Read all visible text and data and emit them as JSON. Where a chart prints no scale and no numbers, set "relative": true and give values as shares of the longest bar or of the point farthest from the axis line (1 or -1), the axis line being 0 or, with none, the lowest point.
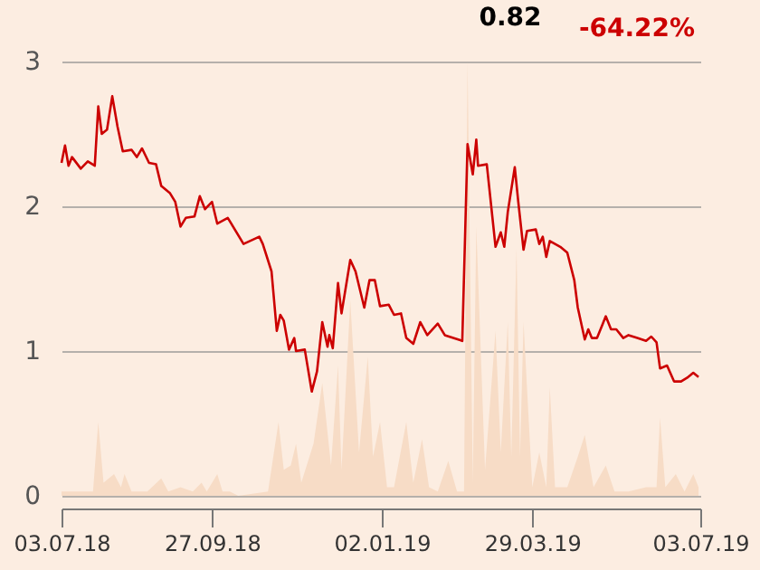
{
  "chart_data": [
    {
      "type": "line",
      "annotations": [
        "0.82",
        "-64.22%"
      ],
      "x": [
        "2018-07-03",
        "2018-07-05",
        "2018-07-07",
        "2018-07-09",
        "2018-07-14",
        "2018-07-18",
        "2018-07-22",
        "2018-07-24",
        "2018-07-26",
        "2018-07-29",
        "2018-08-01",
        "2018-08-04",
        "2018-08-07",
        "2018-08-12",
        "2018-08-15",
        "2018-08-18",
        "2018-08-22",
        "2018-08-26",
        "2018-08-29",
        "2018-09-03",
        "2018-09-06",
        "2018-09-09",
        "2018-09-12",
        "2018-09-17",
        "2018-09-20",
        "2018-09-23",
        "2018-09-27",
        "2018-09-30",
        "2018-10-06",
        "2018-10-15",
        "2018-10-24",
        "2018-10-26",
        "2018-10-31",
        "2018-11-03",
        "2018-11-05",
        "2018-11-07",
        "2018-11-10",
        "2018-11-13",
        "2018-11-14",
        "2018-11-19",
        "2018-11-23",
        "2018-11-26",
        "2018-11-29",
        "2018-12-02",
        "2018-12-03",
        "2018-12-05",
        "2018-12-08",
        "2018-12-10",
        "2018-12-15",
        "2018-12-18",
        "2018-12-23",
        "2018-12-26",
        "2018-12-29",
        "2019-01-01",
        "2019-01-06",
        "2019-01-09",
        "2019-01-13",
        "2019-01-16",
        "2019-01-20",
        "2019-01-24",
        "2019-01-28",
        "2019-02-03",
        "2019-02-07",
        "2019-02-17",
        "2019-02-20",
        "2019-02-23",
        "2019-02-25",
        "2019-02-26",
        "2019-03-03",
        "2019-03-08",
        "2019-03-11",
        "2019-03-13",
        "2019-03-15",
        "2019-03-19",
        "2019-03-21",
        "2019-03-24",
        "2019-03-26",
        "2019-03-31",
        "2019-04-02",
        "2019-04-04",
        "2019-04-06",
        "2019-04-08",
        "2019-04-14",
        "2019-04-18",
        "2019-04-22",
        "2019-04-24",
        "2019-04-28",
        "2019-04-30",
        "2019-05-02",
        "2019-05-05",
        "2019-05-08",
        "2019-05-10",
        "2019-05-13",
        "2019-05-16",
        "2019-05-20",
        "2019-05-23",
        "2019-05-28",
        "2019-06-02",
        "2019-06-05",
        "2019-06-08",
        "2019-06-10",
        "2019-06-14",
        "2019-06-18",
        "2019-06-22",
        "2019-06-26",
        "2019-06-29",
        "2019-07-02"
      ],
      "series": [
        {
          "color": "#cc0000",
          "values": [
            2.3,
            2.42,
            2.28,
            2.34,
            2.26,
            2.31,
            2.28,
            2.69,
            2.5,
            2.53,
            2.76,
            2.55,
            2.38,
            2.39,
            2.34,
            2.4,
            2.3,
            2.29,
            2.14,
            2.09,
            2.03,
            1.86,
            1.92,
            1.93,
            2.07,
            1.98,
            2.03,
            1.88,
            1.92,
            1.74,
            1.79,
            1.74,
            1.55,
            1.14,
            1.25,
            1.21,
            1.01,
            1.09,
            1.0,
            1.01,
            0.72,
            0.86,
            1.2,
            1.03,
            1.11,
            1.02,
            1.47,
            1.26,
            1.63,
            1.55,
            1.3,
            1.49,
            1.49,
            1.31,
            1.32,
            1.25,
            1.26,
            1.09,
            1.05,
            1.2,
            1.11,
            1.19,
            1.11,
            1.07,
            2.43,
            2.22,
            2.46,
            2.28,
            2.29,
            1.72,
            1.82,
            1.72,
            1.96,
            2.27,
            2.03,
            1.7,
            1.83,
            1.84,
            1.74,
            1.79,
            1.65,
            1.76,
            1.72,
            1.68,
            1.49,
            1.3,
            1.08,
            1.15,
            1.09,
            1.09,
            1.18,
            1.24,
            1.15,
            1.15,
            1.09,
            1.11,
            1.09,
            1.07,
            1.1,
            1.06,
            0.88,
            0.9,
            0.79,
            0.79,
            0.82,
            0.85,
            0.82
          ]
        }
      ],
      "xlim": [
        "2018-07-03",
        "2019-07-03"
      ],
      "tick_labels": "y",
      "ylim": [
        0,
        3
      ],
      "yticks": [
        0,
        1,
        2,
        3
      ],
      "grid": "y"
    },
    {
      "type": "area",
      "relative": true,
      "tick_labels": "x",
      "xlim": [
        "2018-07-03",
        "2019-07-03"
      ],
      "xticks": [
        {
          "value": "2018-07-03",
          "label": "03.07.18"
        },
        {
          "value": "2018-09-27",
          "label": "27.09.18"
        },
        {
          "value": "2019-01-02",
          "label": "02.01.19"
        },
        {
          "value": "2019-03-29",
          "label": "29.03.19"
        },
        {
          "value": "2019-07-03",
          "label": "03.07.19"
        }
      ],
      "x": [
        "2018-07-03",
        "2018-07-21",
        "2018-07-24",
        "2018-07-27",
        "2018-08-02",
        "2018-08-06",
        "2018-08-08",
        "2018-08-12",
        "2018-08-21",
        "2018-08-29",
        "2018-09-02",
        "2018-09-09",
        "2018-09-16",
        "2018-09-21",
        "2018-09-24",
        "2018-09-30",
        "2018-10-03",
        "2018-10-07",
        "2018-10-12",
        "2018-10-29",
        "2018-11-04",
        "2018-11-07",
        "2018-11-11",
        "2018-11-14",
        "2018-11-17",
        "2018-11-24",
        "2018-11-29",
        "2018-12-04",
        "2018-12-08",
        "2018-12-10",
        "2018-12-15",
        "2018-12-20",
        "2018-12-25",
        "2018-12-28",
        "2019-01-01",
        "2019-01-05",
        "2019-01-09",
        "2019-01-16",
        "2019-01-20",
        "2019-01-25",
        "2019-01-29",
        "2019-02-03",
        "2019-02-09",
        "2019-02-14",
        "2019-02-18",
        "2019-02-20",
        "2019-02-23",
        "2019-02-25",
        "2019-03-02",
        "2019-03-08",
        "2019-03-11",
        "2019-03-15",
        "2019-03-17",
        "2019-03-20",
        "2019-03-22",
        "2019-03-24",
        "2019-03-29",
        "2019-04-02",
        "2019-04-06",
        "2019-04-08",
        "2019-04-11",
        "2019-04-18",
        "2019-04-24",
        "2019-04-28",
        "2019-05-03",
        "2019-05-10",
        "2019-05-15",
        "2019-05-23",
        "2019-06-02",
        "2019-06-08",
        "2019-06-10",
        "2019-06-13",
        "2019-06-19",
        "2019-06-24",
        "2019-06-29",
        "2019-07-02"
      ],
      "series": [
        {
          "color": "#f7dcc6",
          "values": [
            0.01,
            0.01,
            0.17,
            0.03,
            0.05,
            0.02,
            0.05,
            0.01,
            0.01,
            0.04,
            0.01,
            0.02,
            0.01,
            0.03,
            0.01,
            0.05,
            0.01,
            0.01,
            0,
            0.01,
            0.17,
            0.06,
            0.07,
            0.12,
            0.03,
            0.12,
            0.26,
            0.07,
            0.3,
            0.06,
            0.45,
            0.1,
            0.32,
            0.09,
            0.17,
            0.02,
            0.02,
            0.17,
            0.03,
            0.13,
            0.02,
            0.01,
            0.08,
            0.01,
            0.01,
            1.0,
            0.03,
            0.62,
            0.06,
            0.38,
            0.1,
            0.4,
            0.09,
            0.57,
            0.09,
            0.4,
            0.02,
            0.1,
            0.02,
            0.25,
            0.02,
            0.02,
            0.09,
            0.14,
            0.02,
            0.07,
            0.01,
            0.01,
            0.02,
            0.02,
            0.18,
            0.02,
            0.05,
            0.01,
            0.05,
            0.02
          ]
        }
      ]
    }
  ]
}
